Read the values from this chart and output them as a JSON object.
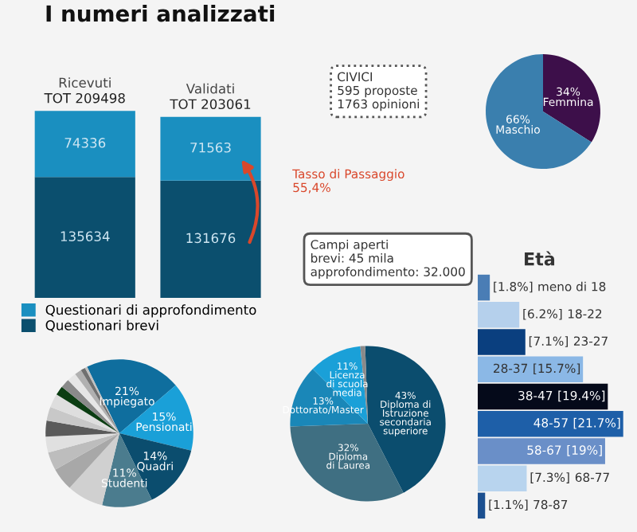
{
  "chart_data": [
    {
      "type": "bar",
      "title": "I numeri analizzati",
      "stacked": true,
      "categories": [
        "Ricevuti",
        "Validati"
      ],
      "totals": [
        "TOT 209498",
        "TOT 203061"
      ],
      "series": [
        {
          "name": "Questionari brevi",
          "color": "#0b4f6e",
          "values": [
            135634,
            131676
          ]
        },
        {
          "name": "Questionari di approfondimento",
          "color": "#1a8fc0",
          "values": [
            74336,
            71563
          ]
        }
      ],
      "data_labels": true,
      "legend": "bottom",
      "annotations": [
        "CIVICI\n595 proposte\n1763 opinioni",
        "Tasso di Passaggio\n55,4%",
        "Campi aperti\nbrevi: 45 mila\napprofondimento: 32.000"
      ]
    },
    {
      "type": "pie",
      "categories": [
        "Femmina",
        "Maschio"
      ],
      "values": [
        34,
        66
      ],
      "value_labels": [
        "34%",
        "66%"
      ],
      "colors": [
        "#3d0f4a",
        "#3a7fae"
      ]
    },
    {
      "type": "pie",
      "categories": [
        "Impiegato",
        "Pensionati",
        "Quadri",
        "Studenti",
        null,
        null,
        null,
        null,
        null,
        null,
        null,
        null,
        null,
        null,
        null,
        null,
        null
      ],
      "values": [
        21,
        15,
        14,
        11,
        8,
        5,
        4,
        3.5,
        3.5,
        3,
        3,
        2,
        2,
        2,
        1.5,
        1,
        0.5
      ],
      "value_labels": [
        "21%",
        "15%",
        "14%",
        "11%",
        null,
        null,
        null,
        null,
        null,
        null,
        null,
        null,
        null,
        null,
        null,
        null,
        null
      ],
      "colors": [
        "#0f6e9e",
        "#1aa0d8",
        "#0b4d6e",
        "#4b7c8e",
        "#d0d0d0",
        "#a8a8a8",
        "#bdbdbd",
        "#e0e0e0",
        "#5a5a5a",
        "#c8c8c8",
        "#dedede",
        "#0b3d12",
        "#8a8a8a",
        "#e6e6e6",
        "#b0b0b0",
        "#707070",
        "#c0c0c0"
      ]
    },
    {
      "type": "pie",
      "categories": [
        "Diploma di\nIstruzione\nsecondaria\nsuperiore",
        "Diploma\ndi Laurea",
        "Dottorato/Master",
        "Licenza\ndi scuola\nmedia",
        null
      ],
      "values": [
        43,
        32,
        13,
        11,
        1
      ],
      "value_labels": [
        "43%",
        "32%",
        "13%",
        "11%",
        null
      ],
      "colors": [
        "#0b4d6e",
        "#3f6f82",
        "#1a87b8",
        "#1aa0d8",
        "#8a8a8a"
      ]
    },
    {
      "type": "bar",
      "title": "Età",
      "orientation": "horizontal",
      "categories": [
        "meno di 18",
        "18-22",
        "23-27",
        "28-37",
        "38-47",
        "48-57",
        "58-67",
        "68-77",
        "78-87"
      ],
      "values": [
        1.8,
        6.2,
        7.1,
        15.7,
        19.4,
        21.7,
        19,
        7.3,
        1.1
      ],
      "value_labels": [
        "[1.8%]",
        "[6.2%]",
        "[7.1%]",
        "[15.7%]",
        "[19.4%]",
        "[21.7%]",
        "[19%]",
        "[7.3%]",
        "[1.1%]"
      ],
      "colors": [
        "#4a7db5",
        "#b5d0ec",
        "#0a3f7f",
        "#8bb8e6",
        "#050a1a",
        "#1e5fa8",
        "#6a8fc8",
        "#b8d4ee",
        "#1b4f90"
      ]
    }
  ]
}
